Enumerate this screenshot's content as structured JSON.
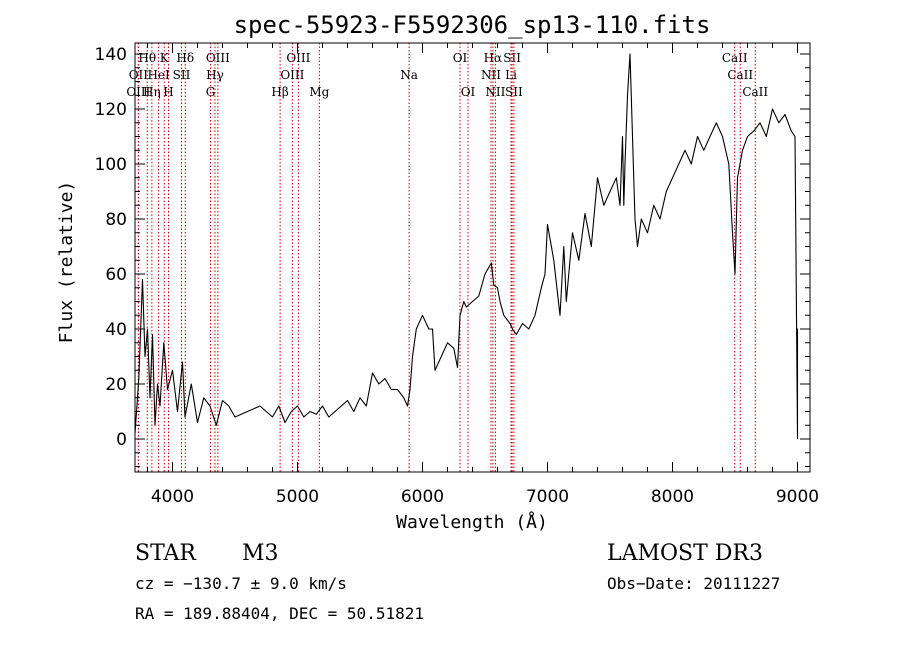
{
  "chart_data": {
    "type": "line",
    "title": "spec-55923-F5592306_sp13-110.fits",
    "xlabel": "Wavelength (Å)",
    "ylabel": "Flux (relative)",
    "xlim": [
      3700,
      9100
    ],
    "ylim": [
      -12,
      144
    ],
    "xticks": [
      4000,
      5000,
      6000,
      7000,
      8000,
      9000
    ],
    "yticks": [
      0,
      20,
      40,
      60,
      80,
      100,
      120,
      140
    ],
    "spectrum": {
      "name": "flux",
      "color": "#000000",
      "x": [
        3700,
        3730,
        3760,
        3780,
        3800,
        3820,
        3840,
        3860,
        3880,
        3900,
        3930,
        3960,
        4000,
        4040,
        4080,
        4100,
        4150,
        4200,
        4250,
        4300,
        4350,
        4400,
        4450,
        4500,
        4600,
        4700,
        4800,
        4850,
        4900,
        4950,
        5000,
        5050,
        5100,
        5150,
        5200,
        5250,
        5300,
        5350,
        5400,
        5450,
        5500,
        5550,
        5600,
        5650,
        5700,
        5750,
        5800,
        5850,
        5880,
        5900,
        5920,
        5950,
        6000,
        6050,
        6080,
        6100,
        6150,
        6200,
        6250,
        6280,
        6300,
        6330,
        6350,
        6400,
        6450,
        6500,
        6550,
        6570,
        6600,
        6620,
        6650,
        6700,
        6720,
        6750,
        6800,
        6850,
        6900,
        6950,
        6980,
        7000,
        7050,
        7100,
        7130,
        7150,
        7200,
        7250,
        7300,
        7350,
        7400,
        7450,
        7500,
        7550,
        7580,
        7600,
        7610,
        7620,
        7640,
        7660,
        7700,
        7720,
        7750,
        7800,
        7850,
        7900,
        7950,
        8000,
        8050,
        8100,
        8150,
        8200,
        8250,
        8300,
        8350,
        8400,
        8450,
        8480,
        8500,
        8520,
        8540,
        8560,
        8600,
        8650,
        8700,
        8750,
        8800,
        8850,
        8900,
        8950,
        8980,
        9000,
        9000,
        9000
      ],
      "y": [
        2,
        22,
        58,
        30,
        40,
        15,
        38,
        5,
        20,
        12,
        35,
        18,
        25,
        10,
        28,
        8,
        20,
        6,
        15,
        12,
        5,
        14,
        12,
        8,
        10,
        12,
        8,
        12,
        6,
        10,
        12,
        8,
        10,
        9,
        12,
        8,
        10,
        12,
        14,
        10,
        15,
        12,
        24,
        20,
        22,
        18,
        18,
        15,
        12,
        18,
        30,
        40,
        45,
        40,
        40,
        25,
        30,
        35,
        33,
        26,
        45,
        50,
        48,
        50,
        52,
        60,
        64,
        56,
        55,
        50,
        45,
        42,
        40,
        38,
        42,
        40,
        45,
        55,
        60,
        78,
        65,
        45,
        70,
        50,
        75,
        65,
        82,
        70,
        95,
        85,
        90,
        95,
        85,
        110,
        85,
        100,
        125,
        140,
        80,
        70,
        80,
        75,
        85,
        80,
        90,
        95,
        100,
        105,
        100,
        110,
        105,
        110,
        115,
        110,
        100,
        75,
        60,
        95,
        100,
        105,
        110,
        112,
        115,
        110,
        120,
        115,
        118,
        112,
        110,
        1,
        40,
        0
      ]
    },
    "line_markers": [
      {
        "label": "Hθ",
        "x": 3798,
        "tier": 1
      },
      {
        "label": "K",
        "x": 3934,
        "tier": 1
      },
      {
        "label": "Hδ",
        "x": 4102,
        "tier": 1
      },
      {
        "label": "OIII",
        "x": 4363,
        "tier": 1
      },
      {
        "label": "OIII",
        "x": 5007,
        "tier": 1
      },
      {
        "label": "OI",
        "x": 6300,
        "tier": 1
      },
      {
        "label": "Hα",
        "x": 6563,
        "tier": 1
      },
      {
        "label": "SII",
        "x": 6717,
        "tier": 1
      },
      {
        "label": "CaII",
        "x": 8498,
        "tier": 1
      },
      {
        "label": "OII",
        "x": 3727,
        "tier": 2
      },
      {
        "label": "HeI",
        "x": 3889,
        "tier": 2
      },
      {
        "label": "SII",
        "x": 4072,
        "tier": 2
      },
      {
        "label": "Hγ",
        "x": 4340,
        "tier": 2
      },
      {
        "label": "OIII",
        "x": 4959,
        "tier": 2
      },
      {
        "label": "Na",
        "x": 5893,
        "tier": 2
      },
      {
        "label": "NII",
        "x": 6548,
        "tier": 2
      },
      {
        "label": "Li",
        "x": 6708,
        "tier": 2
      },
      {
        "label": "CaII",
        "x": 8542,
        "tier": 2
      },
      {
        "label": "OIII",
        "x": 3727,
        "tier": 3
      },
      {
        "label": "Hη",
        "x": 3835,
        "tier": 3
      },
      {
        "label": "H",
        "x": 3968,
        "tier": 3
      },
      {
        "label": "G",
        "x": 4304,
        "tier": 3
      },
      {
        "label": "Hβ",
        "x": 4861,
        "tier": 3
      },
      {
        "label": "Mg",
        "x": 5175,
        "tier": 3
      },
      {
        "label": "OI",
        "x": 6364,
        "tier": 3
      },
      {
        "label": "NII",
        "x": 6583,
        "tier": 3
      },
      {
        "label": "SII",
        "x": 6731,
        "tier": 3
      },
      {
        "label": "CaII",
        "x": 8662,
        "tier": 3
      }
    ],
    "marker_color": "#cc0000"
  },
  "footer": {
    "class_label": "STAR",
    "subclass": "M3",
    "survey": "LAMOST DR3",
    "cz": "cz = −130.7 ± 9.0 km/s",
    "obs_date": "Obs−Date: 20111227",
    "coords": "RA = 189.88404, DEC =  50.51821"
  }
}
